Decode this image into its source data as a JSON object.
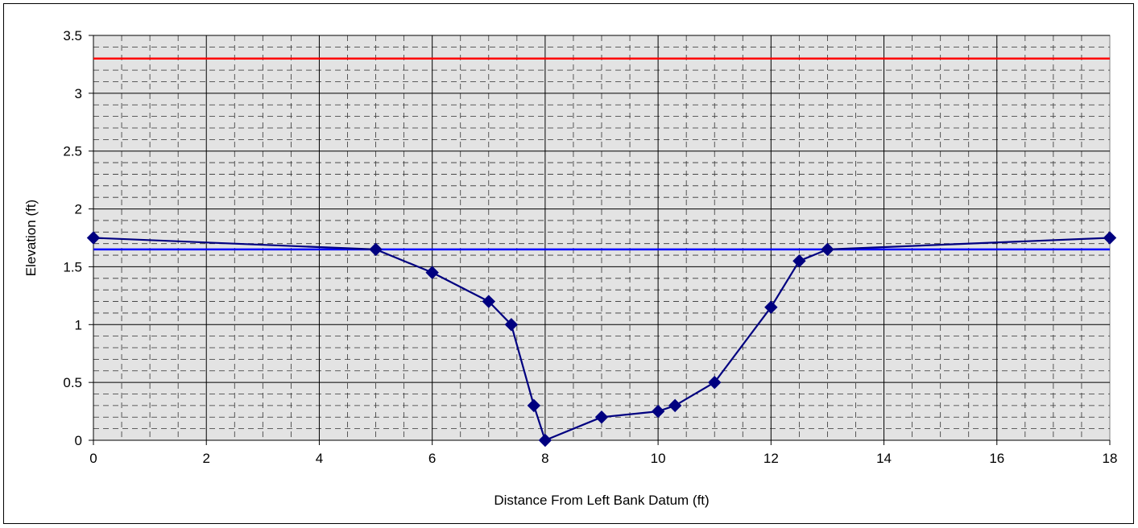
{
  "chart_data": {
    "type": "line",
    "xlabel": "Distance From Left Bank Datum  (ft)",
    "ylabel": "Elevation (ft)",
    "xlim": [
      0,
      18
    ],
    "ylim": [
      0,
      3.5
    ],
    "xticks": [
      0,
      2,
      4,
      6,
      8,
      10,
      12,
      14,
      16,
      18
    ],
    "yticks": [
      0,
      0.5,
      1,
      1.5,
      2,
      2.5,
      3,
      3.5
    ],
    "ytick_labels": [
      "0",
      "0.5",
      "1",
      "1.5",
      "2",
      "2.5",
      "3",
      "3.5"
    ],
    "grid": true,
    "series": [
      {
        "color": "#000080",
        "marker": "diamond",
        "x": [
          0,
          5,
          6,
          7,
          7.4,
          7.8,
          8,
          9,
          10,
          10.3,
          11,
          12,
          12.5,
          13,
          18
        ],
        "y": [
          1.75,
          1.65,
          1.45,
          1.2,
          1.0,
          0.3,
          0.0,
          0.2,
          0.25,
          0.3,
          0.5,
          1.15,
          1.55,
          1.65,
          1.75
        ]
      },
      {
        "color": "#0000ff",
        "marker": "none",
        "x": [
          0,
          18
        ],
        "y": [
          1.65,
          1.65
        ]
      },
      {
        "color": "#ff0000",
        "marker": "none",
        "x": [
          0,
          18
        ],
        "y": [
          3.3,
          3.3
        ]
      }
    ]
  }
}
